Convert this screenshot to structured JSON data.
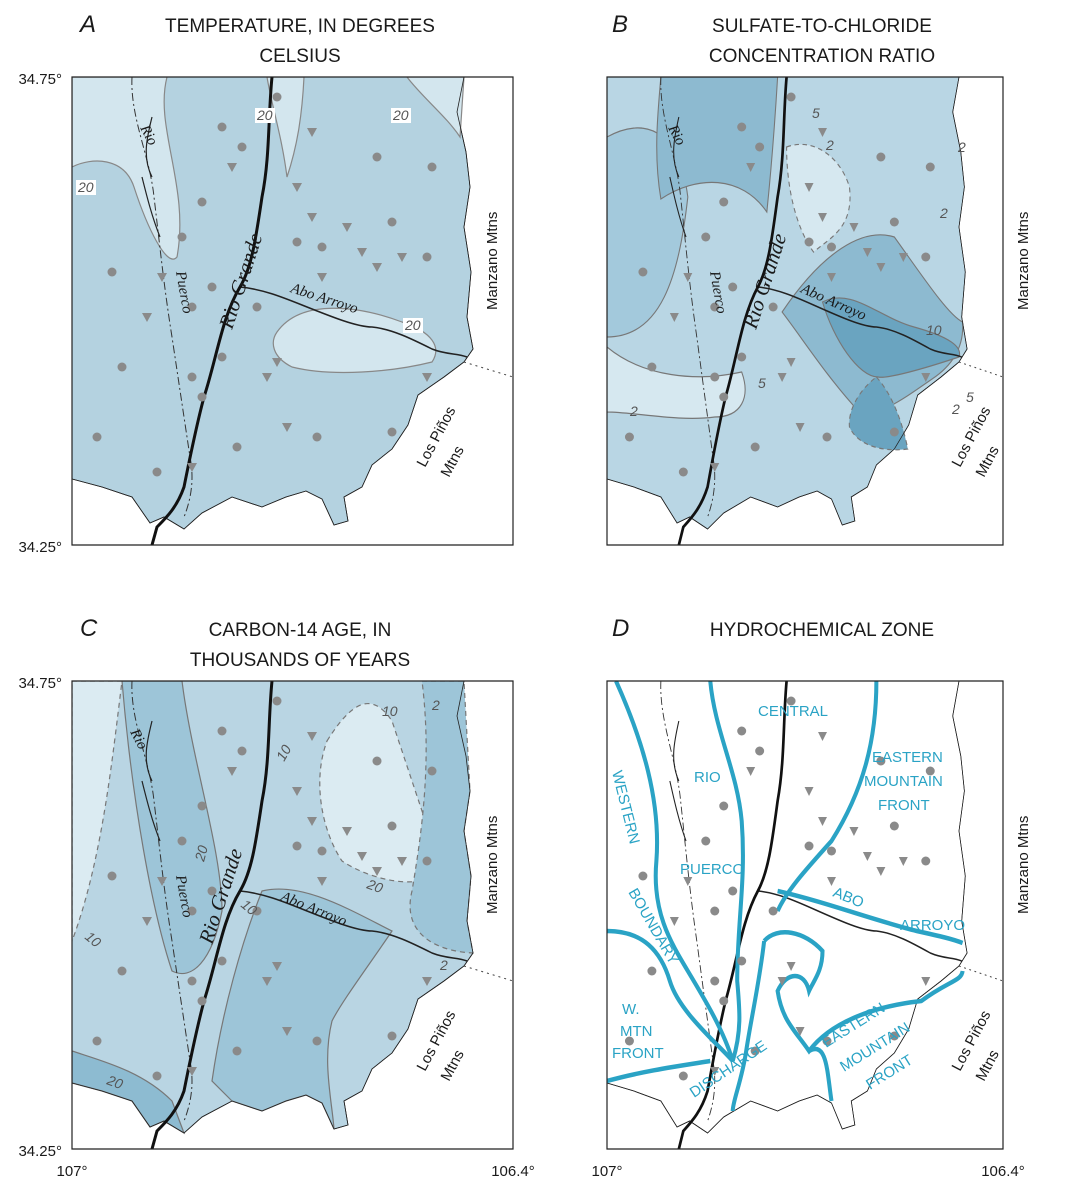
{
  "panels": [
    {
      "letter": "A",
      "title": [
        "TEMPERATURE, IN DEGREES",
        "CELSIUS"
      ],
      "lat_labels": [
        "34.75°",
        "34.25°"
      ],
      "places": [
        "Rio",
        "Puerco",
        "Rio Grande",
        "Abo Arroyo",
        "Manzano Mtns",
        "Los Piños",
        "Mtns"
      ],
      "contour_labels": [
        "20",
        "20",
        "20",
        "20"
      ]
    },
    {
      "letter": "B",
      "title": [
        "SULFATE-TO-CHLORIDE",
        "CONCENTRATION RATIO"
      ],
      "places": [
        "Rio",
        "Puerco",
        "Rio Grande",
        "Abo Arroyo",
        "Manzano Mtns",
        "Los Piños",
        "Mtns"
      ],
      "contour_labels": [
        "5",
        "2",
        "2",
        "2",
        "10",
        "5",
        "5",
        "2",
        "2"
      ]
    },
    {
      "letter": "C",
      "title": [
        "CARBON-14 AGE, IN",
        "THOUSANDS OF YEARS"
      ],
      "lat_labels": [
        "34.75°",
        "34.25°"
      ],
      "lon_labels": [
        "107°",
        "106.4°"
      ],
      "places": [
        "Rio",
        "Puerco",
        "Rio Grande",
        "Abo Arroyo",
        "Manzano Mtns",
        "Los Piños",
        "Mtns"
      ],
      "contour_labels": [
        "10",
        "10",
        "2",
        "20",
        "20",
        "10",
        "10",
        "2",
        "20"
      ]
    },
    {
      "letter": "D",
      "title": [
        "HYDROCHEMICAL ZONE"
      ],
      "lon_labels": [
        "107°",
        "106.4°"
      ],
      "places": [
        "Manzano Mtns",
        "Los Piños",
        "Mtns"
      ],
      "zones": [
        "CENTRAL",
        "RIO",
        "PUERCO",
        "WESTERN",
        "BOUNDARY",
        "EASTERN",
        "MOUNTAIN",
        "FRONT",
        "ABO",
        "ARROYO",
        "W.",
        "MTN",
        "FRONT",
        "DISCHARGE",
        "EASTERN",
        "MOUNTAIN",
        "FRONT"
      ]
    }
  ]
}
